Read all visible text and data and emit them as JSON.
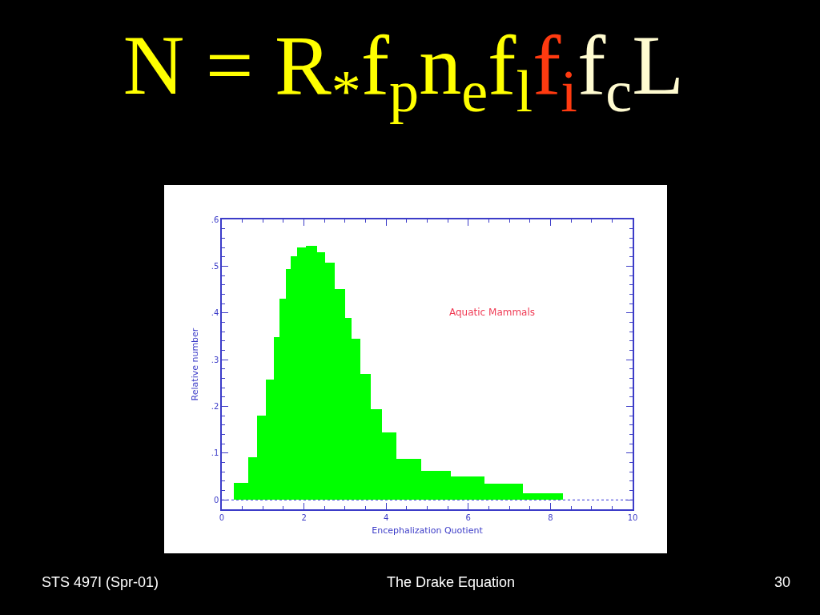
{
  "chart_data": {
    "type": "histogram",
    "title": "N = R$_{*}$f$_{p}$n$_{e}$f$_{l}$f$_{i}$f$_{c}$L",
    "xlabel": "Encephalization Quotient",
    "ylabel": "Relative number",
    "annotations": [
      "Aquatic Mammals",
      "STS 497I (Spr-01)",
      "The Drake Equation",
      "30"
    ],
    "bins": [
      0.29,
      0.65,
      0.86,
      1.08,
      1.26,
      1.4,
      1.55,
      1.67,
      1.83,
      2.04,
      2.32,
      2.51,
      2.74,
      3.01,
      3.16,
      3.37,
      3.63,
      3.9,
      4.25,
      4.86,
      5.57,
      6.4,
      7.33,
      8.31
    ],
    "values": [
      0.037,
      0.091,
      0.181,
      0.258,
      0.348,
      0.43,
      0.494,
      0.521,
      0.54,
      0.543,
      0.53,
      0.507,
      0.451,
      0.389,
      0.344,
      0.27,
      0.194,
      0.144,
      0.088,
      0.062,
      0.051,
      0.035,
      0.015
    ],
    "color": "#00ff00",
    "xlim": [
      0,
      10
    ],
    "ylim": [
      -0.02,
      0.6
    ],
    "xticks": [
      0,
      {
        "value": 0.5,
        "label": null
      },
      {
        "value": 1,
        "label": null
      },
      {
        "value": 1.5,
        "label": null
      },
      2,
      {
        "value": 2.5,
        "label": null
      },
      {
        "value": 3,
        "label": null
      },
      {
        "value": 3.5,
        "label": null
      },
      4,
      {
        "value": 4.5,
        "label": null
      },
      {
        "value": 5,
        "label": null
      },
      {
        "value": 5.5,
        "label": null
      },
      6,
      {
        "value": 6.5,
        "label": null
      },
      {
        "value": 7,
        "label": null
      },
      {
        "value": 7.5,
        "label": null
      },
      8,
      {
        "value": 8.5,
        "label": null
      },
      {
        "value": 9,
        "label": null
      },
      {
        "value": 9.5,
        "label": null
      },
      10
    ],
    "yticks": [
      0,
      {
        "value": 0.02,
        "label": null
      },
      {
        "value": 0.04,
        "label": null
      },
      {
        "value": 0.06,
        "label": null
      },
      {
        "value": 0.08,
        "label": null
      },
      {
        "value": 0.1,
        "label": ".1"
      },
      {
        "value": 0.12,
        "label": null
      },
      {
        "value": 0.14,
        "label": null
      },
      {
        "value": 0.16,
        "label": null
      },
      {
        "value": 0.18,
        "label": null
      },
      {
        "value": 0.2,
        "label": ".2"
      },
      {
        "value": 0.22,
        "label": null
      },
      {
        "value": 0.24,
        "label": null
      },
      {
        "value": 0.26,
        "label": null
      },
      {
        "value": 0.28,
        "label": null
      },
      {
        "value": 0.3,
        "label": ".3"
      },
      {
        "value": 0.32,
        "label": null
      },
      {
        "value": 0.34,
        "label": null
      },
      {
        "value": 0.36,
        "label": null
      },
      {
        "value": 0.38,
        "label": null
      },
      {
        "value": 0.4,
        "label": ".4"
      },
      {
        "value": 0.42,
        "label": null
      },
      {
        "value": 0.44,
        "label": null
      },
      {
        "value": 0.46,
        "label": null
      },
      {
        "value": 0.48,
        "label": null
      },
      {
        "value": 0.5,
        "label": ".5"
      },
      {
        "value": 0.52,
        "label": null
      },
      {
        "value": 0.54,
        "label": null
      },
      {
        "value": 0.56,
        "label": null
      },
      {
        "value": 0.58,
        "label": null
      },
      {
        "value": 0.6,
        "label": ".6"
      }
    ],
    "ref_lines": [
      {
        "axis": "y",
        "value": 0,
        "line_style": "dotted",
        "color": "#5a5ae0"
      }
    ]
  }
}
